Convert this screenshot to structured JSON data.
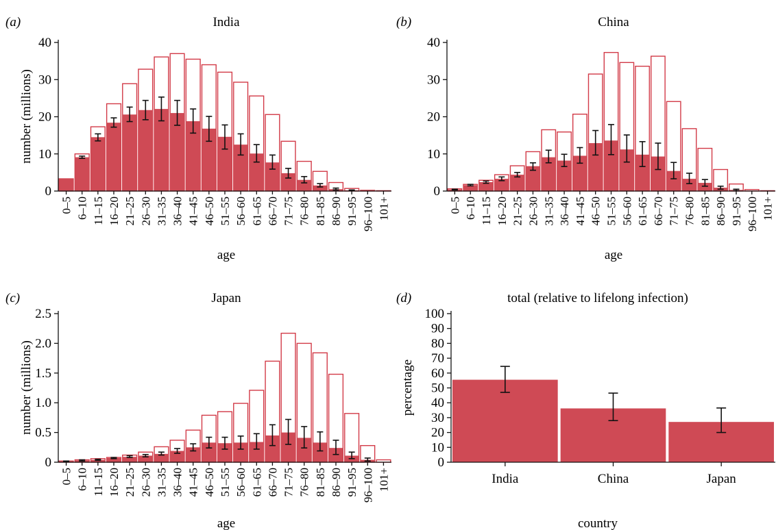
{
  "colors": {
    "bar_fill": "#cf4a55",
    "bar_outline": "#d23a47",
    "axis": "#111111",
    "error": "#111111"
  },
  "age_groups": [
    "0–5",
    "6–10",
    "11–15",
    "16–20",
    "21–25",
    "26–30",
    "31–35",
    "36–40",
    "41–45",
    "46–50",
    "51–55",
    "56–60",
    "61–65",
    "66–70",
    "71–75",
    "76–80",
    "81–85",
    "86–90",
    "91–95",
    "96–100",
    "101+"
  ],
  "chart_data": [
    {
      "panel": "(a)",
      "type": "bar",
      "title": "India",
      "xlabel": "age",
      "ylabel": "number (millions)",
      "ylim": [
        0,
        40
      ],
      "yticks": [
        "0",
        "10",
        "20",
        "30",
        "40"
      ],
      "series": [
        {
          "name": "",
          "role": "outline",
          "values": [
            3.3,
            10.0,
            17.3,
            23.5,
            28.9,
            32.8,
            36.1,
            37.0,
            35.5,
            34.0,
            32.0,
            29.3,
            25.6,
            20.6,
            13.4,
            8.0,
            5.3,
            2.3,
            0.7,
            0.2,
            0.1
          ]
        },
        {
          "name": "",
          "role": "filled",
          "values": [
            3.3,
            9.1,
            14.5,
            18.4,
            20.6,
            21.8,
            22.1,
            21.0,
            18.8,
            16.8,
            14.6,
            12.5,
            10.1,
            7.7,
            4.8,
            3.0,
            1.5,
            0.5,
            0.2,
            0.05,
            0.0
          ],
          "error_low": [
            3.3,
            8.8,
            13.5,
            17.2,
            18.7,
            19.2,
            18.9,
            17.7,
            15.6,
            13.4,
            11.3,
            9.7,
            7.8,
            5.9,
            3.5,
            2.2,
            1.1,
            0.3,
            0.1,
            0.02,
            0.0
          ],
          "error_high": [
            3.4,
            9.4,
            15.4,
            19.7,
            22.6,
            24.4,
            25.3,
            24.4,
            22.1,
            20.1,
            17.8,
            15.4,
            12.5,
            9.7,
            6.1,
            3.9,
            2.0,
            0.8,
            0.3,
            0.1,
            0.0
          ]
        }
      ]
    },
    {
      "panel": "(b)",
      "type": "bar",
      "title": "China",
      "xlabel": "age",
      "ylabel": "",
      "ylim": [
        0,
        40
      ],
      "yticks": [
        "0",
        "10",
        "20",
        "30",
        "40"
      ],
      "series": [
        {
          "name": "",
          "role": "outline",
          "values": [
            0.6,
            1.8,
            2.9,
            4.4,
            6.8,
            10.6,
            16.5,
            15.9,
            20.7,
            31.5,
            37.3,
            34.6,
            33.6,
            36.3,
            24.1,
            16.8,
            11.5,
            5.8,
            1.9,
            0.4,
            0.1
          ]
        },
        {
          "name": "",
          "role": "filled",
          "values": [
            0.4,
            1.6,
            2.4,
            3.3,
            4.4,
            6.7,
            9.1,
            8.2,
            9.5,
            12.9,
            13.6,
            11.2,
            9.8,
            9.3,
            5.4,
            3.3,
            2.2,
            0.9,
            0.3,
            0.05,
            0.0
          ],
          "error_low": [
            0.3,
            1.4,
            2.1,
            2.8,
            3.8,
            5.6,
            7.6,
            6.6,
            7.5,
            9.7,
            9.8,
            7.8,
            6.6,
            5.8,
            3.3,
            2.0,
            1.3,
            0.5,
            0.1,
            0.02,
            0.0
          ],
          "error_high": [
            0.5,
            1.8,
            2.7,
            3.8,
            5.0,
            7.6,
            11.0,
            9.9,
            11.7,
            16.3,
            17.9,
            15.1,
            13.3,
            12.9,
            7.7,
            4.8,
            3.1,
            1.3,
            0.5,
            0.1,
            0.0
          ]
        }
      ]
    },
    {
      "panel": "(c)",
      "type": "bar",
      "title": "Japan",
      "xlabel": "age",
      "ylabel": "number (millions)",
      "ylim": [
        0,
        2.5
      ],
      "yticks": [
        "0",
        "0.5",
        "1.0",
        "1.5",
        "2.0",
        "2.5"
      ],
      "series": [
        {
          "name": "",
          "role": "outline",
          "values": [
            0.02,
            0.04,
            0.06,
            0.08,
            0.12,
            0.17,
            0.26,
            0.37,
            0.54,
            0.79,
            0.85,
            0.99,
            1.21,
            1.7,
            2.17,
            2.0,
            1.84,
            1.48,
            0.82,
            0.28,
            0.04
          ]
        },
        {
          "name": "",
          "role": "filled",
          "values": [
            0.01,
            0.03,
            0.04,
            0.07,
            0.09,
            0.11,
            0.14,
            0.19,
            0.25,
            0.33,
            0.32,
            0.33,
            0.34,
            0.45,
            0.5,
            0.41,
            0.33,
            0.24,
            0.11,
            0.04,
            0.0
          ],
          "error_low": [
            0.01,
            0.02,
            0.03,
            0.06,
            0.08,
            0.09,
            0.12,
            0.15,
            0.19,
            0.24,
            0.22,
            0.22,
            0.22,
            0.28,
            0.3,
            0.24,
            0.19,
            0.13,
            0.06,
            0.02,
            0.0
          ],
          "error_high": [
            0.02,
            0.04,
            0.05,
            0.08,
            0.11,
            0.13,
            0.17,
            0.23,
            0.31,
            0.42,
            0.42,
            0.44,
            0.48,
            0.63,
            0.72,
            0.6,
            0.51,
            0.37,
            0.17,
            0.07,
            0.0
          ]
        }
      ]
    },
    {
      "panel": "(d)",
      "type": "bar",
      "title": "total (relative to lifelong infection)",
      "xlabel": "country",
      "ylabel": "percentage",
      "ylim": [
        0,
        100
      ],
      "yticks": [
        "0",
        "10",
        "20",
        "30",
        "40",
        "50",
        "60",
        "70",
        "80",
        "90",
        "100"
      ],
      "categories": [
        "India",
        "China",
        "Japan"
      ],
      "values": [
        55.5,
        36.2,
        27.1
      ],
      "error_low": [
        47.0,
        28.0,
        20.0
      ],
      "error_high": [
        64.5,
        46.5,
        36.5
      ]
    }
  ]
}
